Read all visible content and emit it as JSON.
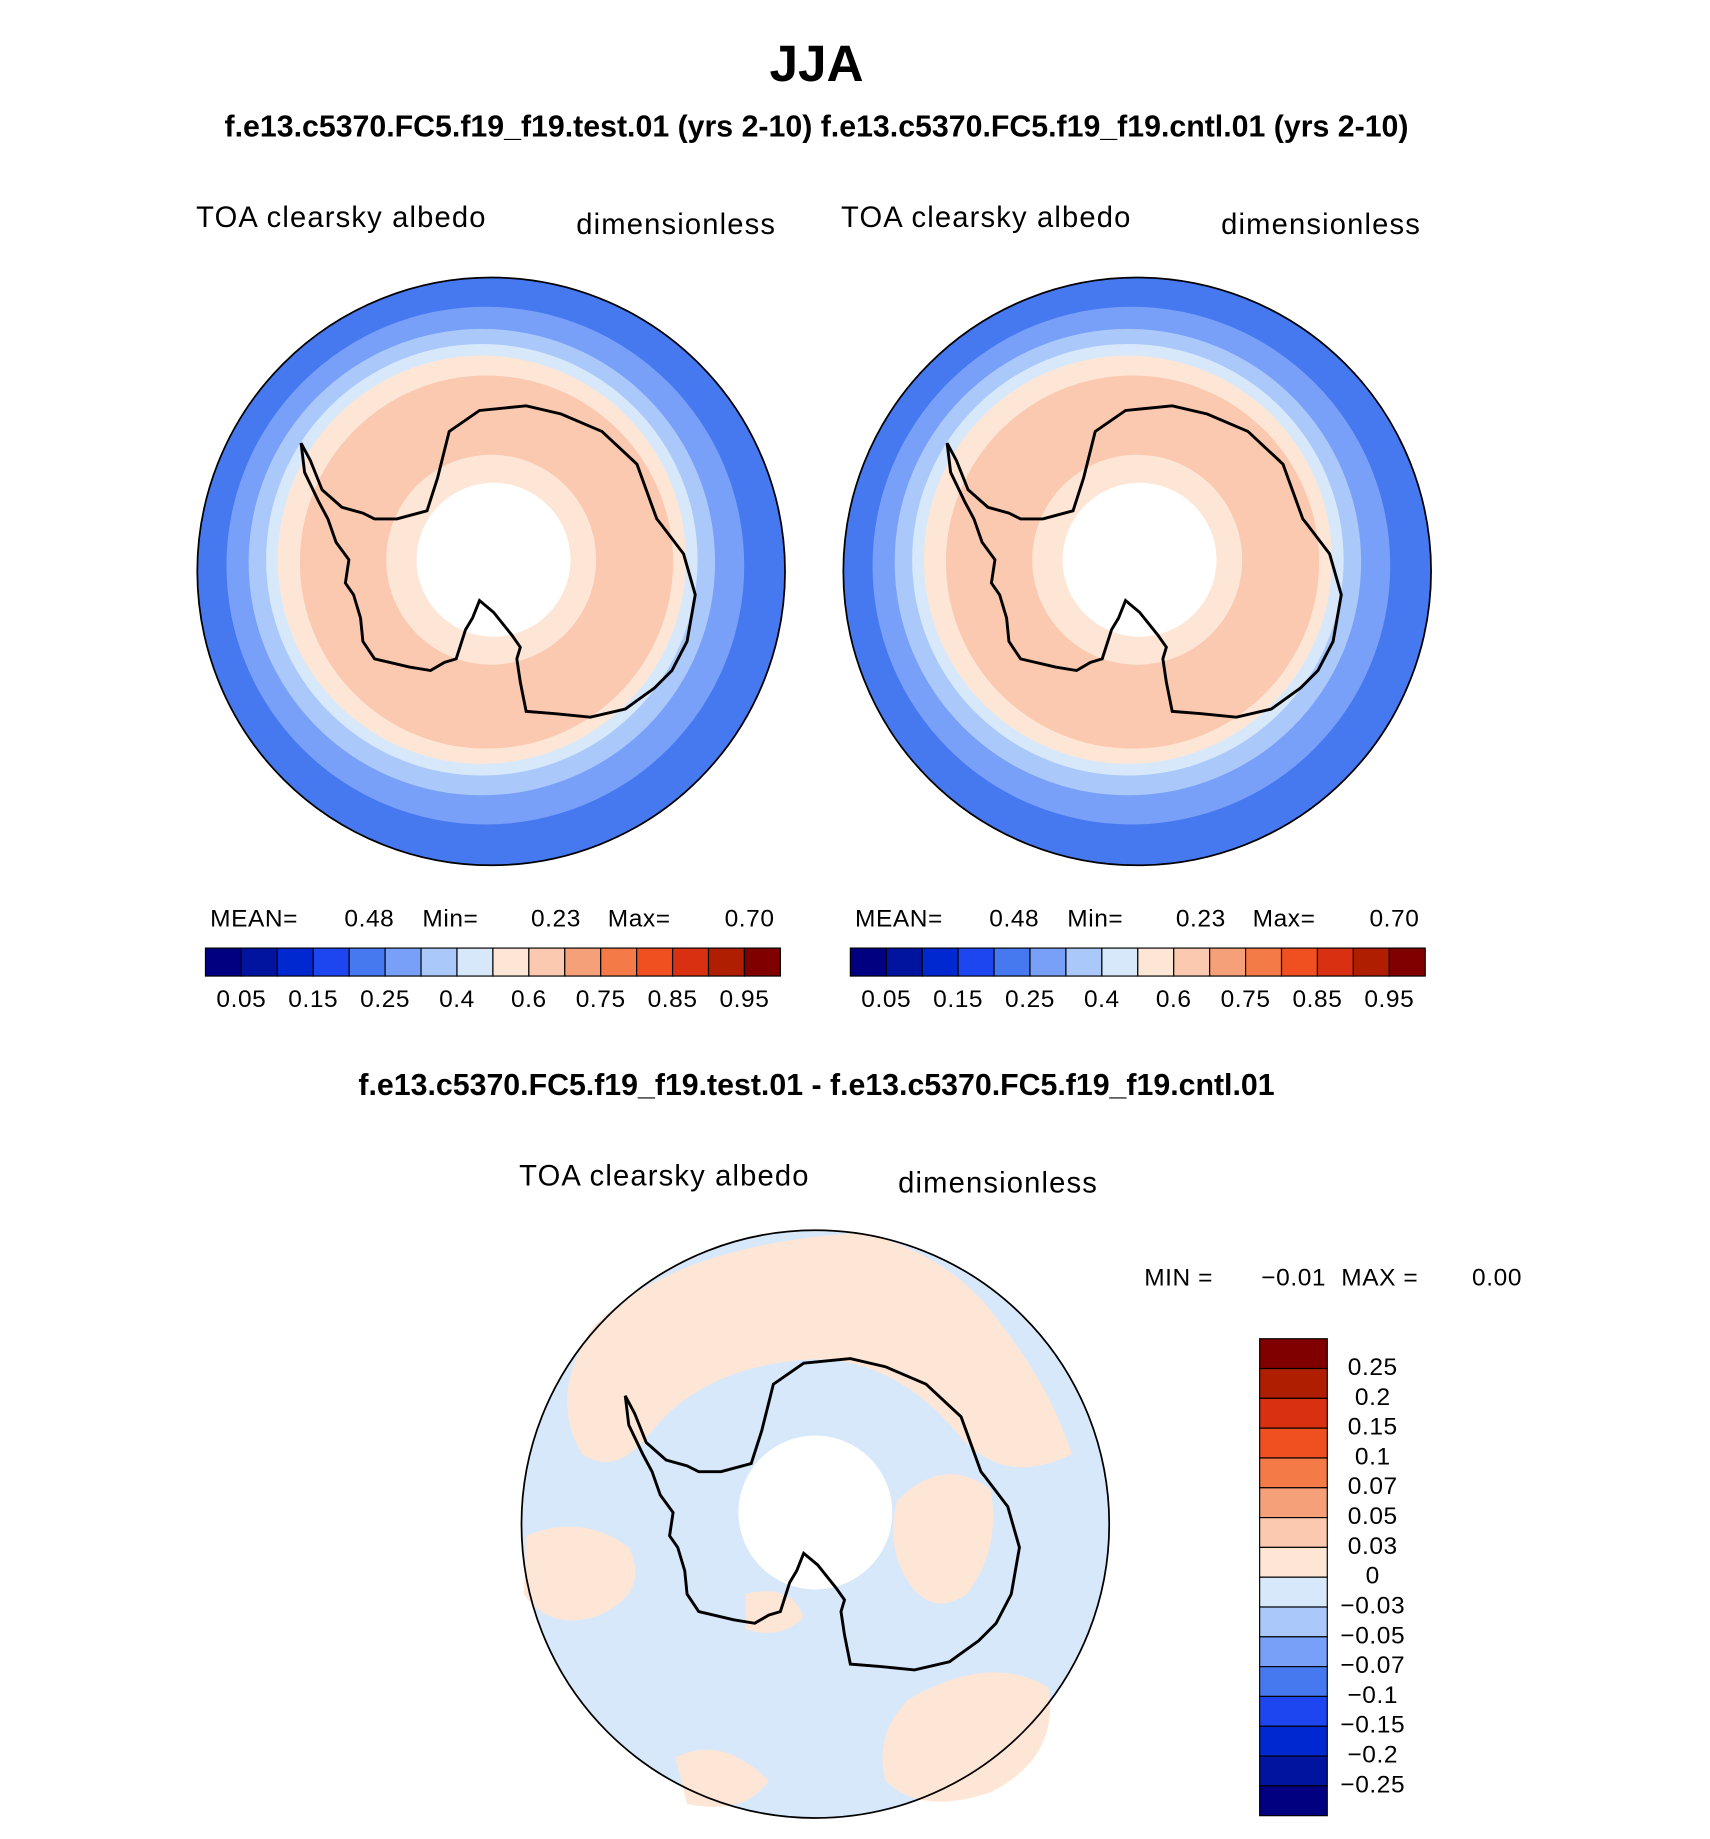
{
  "header": {
    "title": "JJA",
    "subtitle": "f.e13.c5370.FC5.f19_f19.test.01 (yrs 2-10) f.e13.c5370.FC5.f19_f19.cntl.01 (yrs 2-10)"
  },
  "panels": [
    {
      "label": "TOA clearsky albedo",
      "units": "dimensionless",
      "stats": [
        {
          "label": "MEAN=",
          "value": "0.48"
        },
        {
          "label": "Min=",
          "value": "0.23"
        },
        {
          "label": "Max=",
          "value": "0.70"
        }
      ],
      "colorbar": {
        "labels": [
          "0.05",
          "0.15",
          "0.25",
          "0.4",
          "0.6",
          "0.75",
          "0.85",
          "0.95"
        ]
      }
    },
    {
      "label": "TOA clearsky albedo",
      "units": "dimensionless",
      "stats": [
        {
          "label": "MEAN=",
          "value": "0.48"
        },
        {
          "label": "Min=",
          "value": "0.23"
        },
        {
          "label": "Max=",
          "value": "0.70"
        }
      ],
      "colorbar": {
        "labels": [
          "0.05",
          "0.15",
          "0.25",
          "0.4",
          "0.6",
          "0.75",
          "0.85",
          "0.95"
        ]
      }
    }
  ],
  "difference": {
    "title": "f.e13.c5370.FC5.f19_f19.test.01 - f.e13.c5370.FC5.f19_f19.cntl.01",
    "label": "TOA clearsky albedo",
    "units": "dimensionless",
    "stats": [
      {
        "label": "MIN =",
        "value": "−0.01"
      },
      {
        "label": "MAX =",
        "value": "0.00"
      }
    ],
    "colorbar": {
      "labels": [
        "0.25",
        "0.2",
        "0.15",
        "0.1",
        "0.07",
        "0.05",
        "0.03",
        "0",
        "−0.03",
        "−0.05",
        "−0.07",
        "−0.1",
        "−0.15",
        "−0.2",
        "−0.25"
      ]
    }
  },
  "colorbar_colors": [
    "#000080",
    "#0014a0",
    "#0028d0",
    "#1e46f0",
    "#4678f0",
    "#78a0f8",
    "#aac8fa",
    "#d7e8fa",
    "#fde6d6",
    "#fbc8b0",
    "#f6a07a",
    "#f47a48",
    "#f05020",
    "#d83010",
    "#b01e00",
    "#800000"
  ]
}
